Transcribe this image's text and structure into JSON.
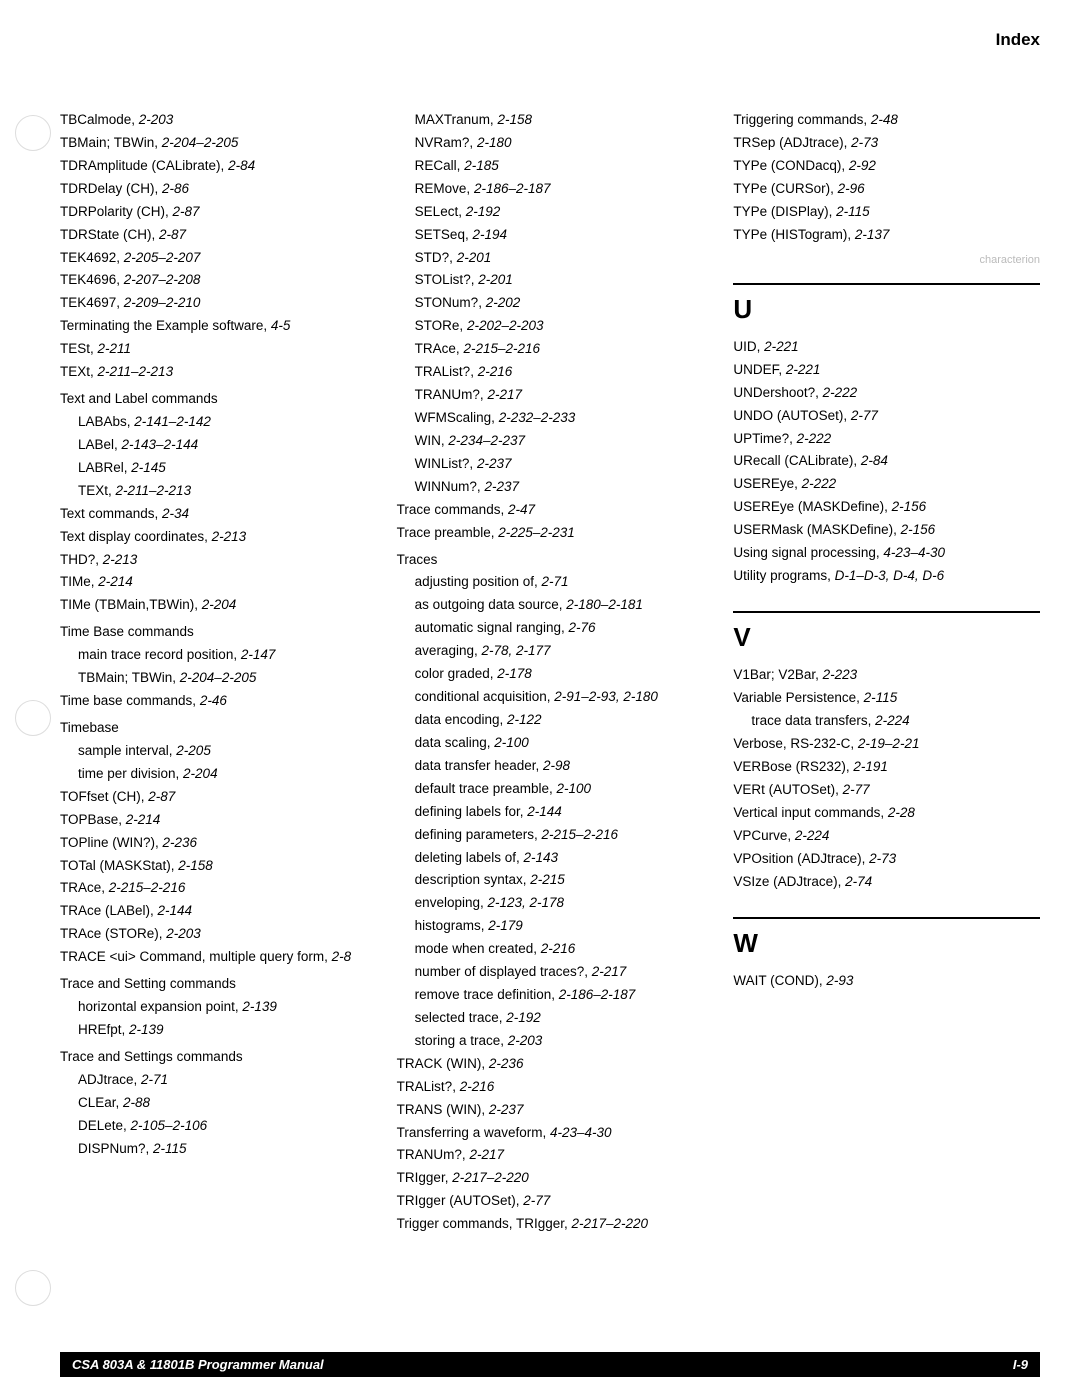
{
  "header": {
    "label": "Index"
  },
  "col1": [
    {
      "t": "e",
      "text": "TBCalmode, ",
      "ref": "2-203"
    },
    {
      "t": "e",
      "text": "TBMain; TBWin, ",
      "ref": "2-204–2-205"
    },
    {
      "t": "e",
      "text": "TDRAmplitude (CALibrate), ",
      "ref": "2-84"
    },
    {
      "t": "e",
      "text": "TDRDelay (CH), ",
      "ref": "2-86"
    },
    {
      "t": "e",
      "text": "TDRPolarity (CH), ",
      "ref": "2-87"
    },
    {
      "t": "e",
      "text": "TDRState (CH), ",
      "ref": "2-87"
    },
    {
      "t": "e",
      "text": "TEK4692, ",
      "ref": "2-205–2-207"
    },
    {
      "t": "e",
      "text": "TEK4696, ",
      "ref": "2-207–2-208"
    },
    {
      "t": "e",
      "text": "TEK4697, ",
      "ref": "2-209–2-210"
    },
    {
      "t": "e",
      "text": "Terminating the Example software, ",
      "ref": "4-5"
    },
    {
      "t": "e",
      "text": "TESt, ",
      "ref": "2-211"
    },
    {
      "t": "e",
      "text": "TEXt, ",
      "ref": "2-211–2-213"
    },
    {
      "t": "g",
      "text": "Text and Label commands"
    },
    {
      "t": "s",
      "text": "LABAbs, ",
      "ref": "2-141–2-142"
    },
    {
      "t": "s",
      "text": "LABel, ",
      "ref": "2-143–2-144"
    },
    {
      "t": "s",
      "text": "LABRel, ",
      "ref": "2-145"
    },
    {
      "t": "s",
      "text": "TEXt, ",
      "ref": "2-211–2-213"
    },
    {
      "t": "e",
      "text": "Text commands, ",
      "ref": "2-34"
    },
    {
      "t": "e",
      "text": "Text display coordinates, ",
      "ref": "2-213"
    },
    {
      "t": "e",
      "text": "THD?, ",
      "ref": "2-213"
    },
    {
      "t": "e",
      "text": "TIMe, ",
      "ref": "2-214"
    },
    {
      "t": "e",
      "text": "TIMe (TBMain,TBWin), ",
      "ref": "2-204"
    },
    {
      "t": "g",
      "text": "Time Base commands"
    },
    {
      "t": "s",
      "text": "main trace record position, ",
      "ref": "2-147"
    },
    {
      "t": "s",
      "text": "TBMain; TBWin, ",
      "ref": "2-204–2-205"
    },
    {
      "t": "e",
      "text": "Time base commands, ",
      "ref": "2-46"
    },
    {
      "t": "g",
      "text": "Timebase"
    },
    {
      "t": "s",
      "text": "sample interval, ",
      "ref": "2-205"
    },
    {
      "t": "s",
      "text": "time per division, ",
      "ref": "2-204"
    },
    {
      "t": "e",
      "text": "TOFfset (CH), ",
      "ref": "2-87"
    },
    {
      "t": "e",
      "text": "TOPBase, ",
      "ref": "2-214"
    },
    {
      "t": "e",
      "text": "TOPline (WIN?), ",
      "ref": "2-236"
    },
    {
      "t": "e",
      "text": "TOTal (MASKStat), ",
      "ref": "2-158"
    },
    {
      "t": "e",
      "text": "TRAce, ",
      "ref": "2-215–2-216"
    },
    {
      "t": "e",
      "text": "TRAce (LABel), ",
      "ref": "2-144"
    },
    {
      "t": "e",
      "text": "TRAce (STORe), ",
      "ref": "2-203"
    },
    {
      "t": "e",
      "text": "TRACE <ui> Command, multiple query form, ",
      "ref": "2-8"
    },
    {
      "t": "g",
      "text": "Trace and Setting commands"
    },
    {
      "t": "s",
      "text": "horizontal expansion point, ",
      "ref": "2-139"
    },
    {
      "t": "s",
      "text": "HREfpt, ",
      "ref": "2-139"
    },
    {
      "t": "g",
      "text": "Trace and Settings commands"
    },
    {
      "t": "s",
      "text": "ADJtrace, ",
      "ref": "2-71"
    },
    {
      "t": "s",
      "text": "CLEar, ",
      "ref": "2-88"
    },
    {
      "t": "s",
      "text": "DELete, ",
      "ref": "2-105–2-106"
    },
    {
      "t": "s",
      "text": "DISPNum?, ",
      "ref": "2-115"
    }
  ],
  "col2": [
    {
      "t": "s",
      "text": "MAXTranum, ",
      "ref": "2-158"
    },
    {
      "t": "s",
      "text": "NVRam?, ",
      "ref": "2-180"
    },
    {
      "t": "s",
      "text": "RECall, ",
      "ref": "2-185"
    },
    {
      "t": "s",
      "text": "REMove, ",
      "ref": "2-186–2-187"
    },
    {
      "t": "s",
      "text": "SELect, ",
      "ref": "2-192"
    },
    {
      "t": "s",
      "text": "SETSeq, ",
      "ref": "2-194"
    },
    {
      "t": "s",
      "text": "STD?, ",
      "ref": "2-201"
    },
    {
      "t": "s",
      "text": "STOList?, ",
      "ref": "2-201"
    },
    {
      "t": "s",
      "text": "STONum?, ",
      "ref": "2-202"
    },
    {
      "t": "s",
      "text": "STORe, ",
      "ref": "2-202–2-203"
    },
    {
      "t": "s",
      "text": "TRAce, ",
      "ref": "2-215–2-216"
    },
    {
      "t": "s",
      "text": "TRAList?, ",
      "ref": "2-216"
    },
    {
      "t": "s",
      "text": "TRANUm?, ",
      "ref": "2-217"
    },
    {
      "t": "s",
      "text": "WFMScaling, ",
      "ref": "2-232–2-233"
    },
    {
      "t": "s",
      "text": "WIN, ",
      "ref": "2-234–2-237"
    },
    {
      "t": "s",
      "text": "WINList?, ",
      "ref": "2-237"
    },
    {
      "t": "s",
      "text": "WINNum?, ",
      "ref": "2-237"
    },
    {
      "t": "e",
      "text": "Trace commands, ",
      "ref": "2-47"
    },
    {
      "t": "e",
      "text": "Trace preamble, ",
      "ref": "2-225–2-231"
    },
    {
      "t": "g",
      "text": "Traces"
    },
    {
      "t": "s",
      "text": "adjusting position of, ",
      "ref": "2-71"
    },
    {
      "t": "s",
      "text": "as outgoing data source, ",
      "ref": "2-180–2-181"
    },
    {
      "t": "s",
      "text": "automatic signal ranging, ",
      "ref": "2-76"
    },
    {
      "t": "s",
      "text": "averaging, ",
      "ref": "2-78, 2-177"
    },
    {
      "t": "s",
      "text": "color graded, ",
      "ref": "2-178"
    },
    {
      "t": "s",
      "text": "conditional acquisition, ",
      "ref": "2-91–2-93, 2-180"
    },
    {
      "t": "s",
      "text": "data encoding, ",
      "ref": "2-122"
    },
    {
      "t": "s",
      "text": "data scaling, ",
      "ref": "2-100"
    },
    {
      "t": "s",
      "text": "data transfer header, ",
      "ref": "2-98"
    },
    {
      "t": "s",
      "text": "default trace preamble, ",
      "ref": "2-100"
    },
    {
      "t": "s",
      "text": "defining labels for, ",
      "ref": "2-144"
    },
    {
      "t": "s",
      "text": "defining parameters, ",
      "ref": "2-215–2-216"
    },
    {
      "t": "s",
      "text": "deleting labels of, ",
      "ref": "2-143"
    },
    {
      "t": "s",
      "text": "description syntax, ",
      "ref": "2-215"
    },
    {
      "t": "s",
      "text": "enveloping, ",
      "ref": "2-123, 2-178"
    },
    {
      "t": "s",
      "text": "histograms, ",
      "ref": "2-179"
    },
    {
      "t": "s",
      "text": "mode when created, ",
      "ref": "2-216"
    },
    {
      "t": "s",
      "text": "number of displayed traces?, ",
      "ref": "2-217"
    },
    {
      "t": "s",
      "text": "remove trace definition, ",
      "ref": "2-186–2-187"
    },
    {
      "t": "s",
      "text": "selected trace, ",
      "ref": "2-192"
    },
    {
      "t": "s",
      "text": "storing a trace, ",
      "ref": "2-203"
    },
    {
      "t": "e",
      "text": "TRACK (WIN), ",
      "ref": "2-236"
    },
    {
      "t": "e",
      "text": "TRAList?, ",
      "ref": "2-216"
    },
    {
      "t": "e",
      "text": "TRANS (WIN), ",
      "ref": "2-237"
    },
    {
      "t": "e",
      "text": "Transferring a waveform, ",
      "ref": "4-23–4-30"
    },
    {
      "t": "e",
      "text": "TRANUm?, ",
      "ref": "2-217"
    },
    {
      "t": "e",
      "text": "TRIgger, ",
      "ref": "2-217–2-220"
    },
    {
      "t": "e",
      "text": "TRIgger (AUTOSet), ",
      "ref": "2-77"
    },
    {
      "t": "e",
      "text": "Trigger commands, TRIgger, ",
      "ref": "2-217–2-220"
    }
  ],
  "col3_top": [
    {
      "t": "e",
      "text": "Triggering commands, ",
      "ref": "2-48"
    },
    {
      "t": "e",
      "text": "TRSep (ADJtrace), ",
      "ref": "2-73"
    },
    {
      "t": "e",
      "text": "TYPe (CONDacq), ",
      "ref": "2-92"
    },
    {
      "t": "e",
      "text": "TYPe (CURSor), ",
      "ref": "2-96"
    },
    {
      "t": "e",
      "text": "TYPe (DISPlay), ",
      "ref": "2-115"
    },
    {
      "t": "e",
      "text": "TYPe (HISTogram), ",
      "ref": "2-137"
    }
  ],
  "col3_U": [
    {
      "t": "e",
      "text": "UID, ",
      "ref": "2-221"
    },
    {
      "t": "e",
      "text": "UNDEF, ",
      "ref": "2-221"
    },
    {
      "t": "e",
      "text": "UNDershoot?, ",
      "ref": "2-222"
    },
    {
      "t": "e",
      "text": "UNDO (AUTOSet), ",
      "ref": "2-77"
    },
    {
      "t": "e",
      "text": "UPTime?, ",
      "ref": "2-222"
    },
    {
      "t": "e",
      "text": "URecall (CALibrate), ",
      "ref": "2-84"
    },
    {
      "t": "e",
      "text": "USEREye, ",
      "ref": "2-222"
    },
    {
      "t": "e",
      "text": "USEREye (MASKDefine), ",
      "ref": "2-156"
    },
    {
      "t": "e",
      "text": "USERMask (MASKDefine), ",
      "ref": "2-156"
    },
    {
      "t": "e",
      "text": "Using signal processing, ",
      "ref": "4-23–4-30"
    },
    {
      "t": "e",
      "text": "Utility programs, ",
      "ref": "D-1–D-3, D-4, D-6"
    }
  ],
  "col3_V": [
    {
      "t": "e",
      "text": "V1Bar; V2Bar, ",
      "ref": "2-223"
    },
    {
      "t": "e",
      "text": "Variable Persistence, ",
      "ref": "2-115"
    },
    {
      "t": "s",
      "text": "trace data transfers, ",
      "ref": "2-224"
    },
    {
      "t": "e",
      "text": "Verbose, RS-232-C, ",
      "ref": "2-19–2-21"
    },
    {
      "t": "e",
      "text": "VERBose (RS232), ",
      "ref": "2-191"
    },
    {
      "t": "e",
      "text": "VERt (AUTOSet), ",
      "ref": "2-77"
    },
    {
      "t": "e",
      "text": "Vertical input commands, ",
      "ref": "2-28"
    },
    {
      "t": "e",
      "text": "VPCurve, ",
      "ref": "2-224"
    },
    {
      "t": "e",
      "text": "VPOsition (ADJtrace), ",
      "ref": "2-73"
    },
    {
      "t": "e",
      "text": "VSIze (ADJtrace), ",
      "ref": "2-74"
    }
  ],
  "col3_W": [
    {
      "t": "e",
      "text": "WAIT (COND), ",
      "ref": "2-93"
    }
  ],
  "sections": {
    "U": "U",
    "V": "V",
    "W": "W"
  },
  "footer": {
    "left": "CSA 803A & 11801B Programmer Manual",
    "right": "I-9"
  }
}
